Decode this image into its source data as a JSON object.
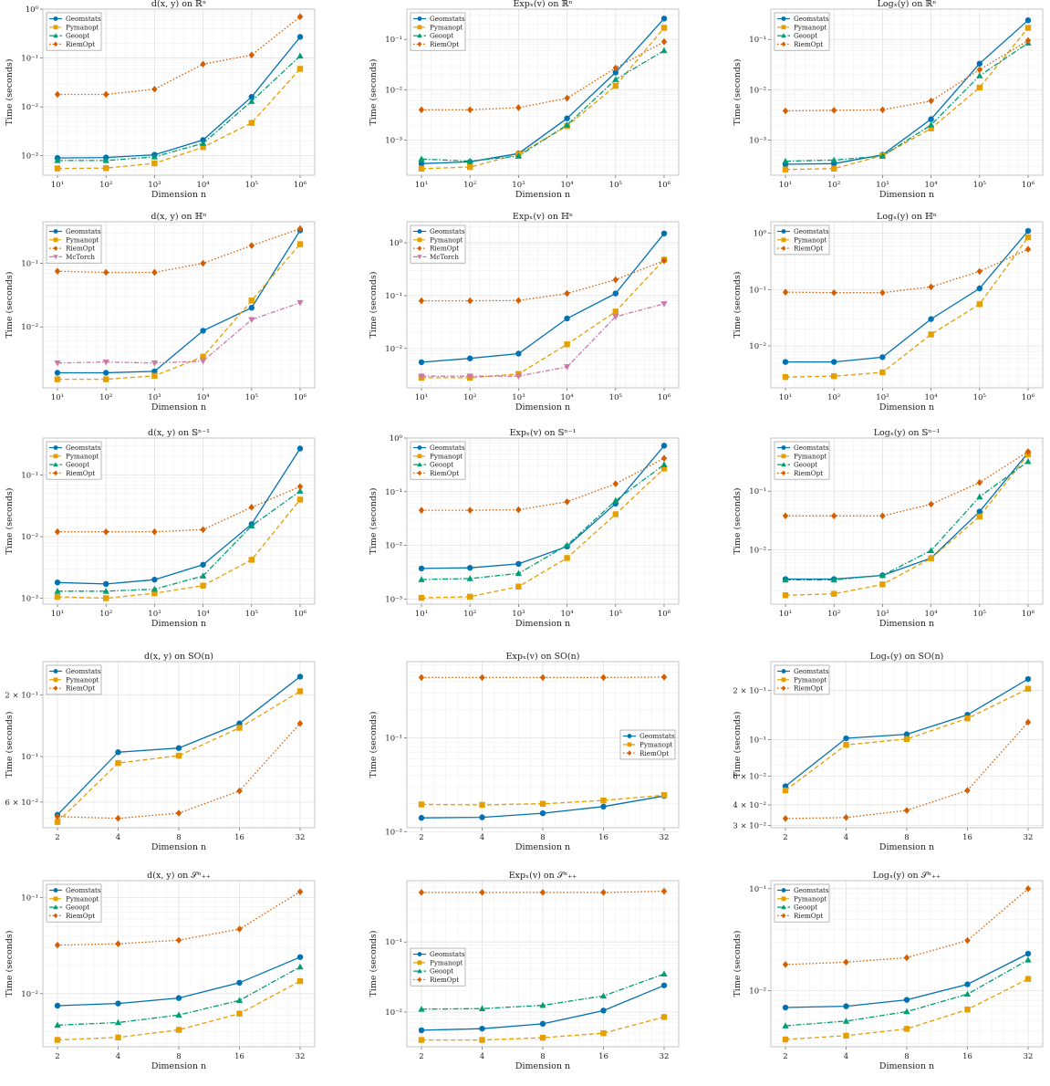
{
  "colors": {
    "Geomstats": "#0072b2",
    "Pymanopt": "#e69f00",
    "Geoopt": "#009e73",
    "RiemOpt": "#d55e00",
    "McTorch": "#cc79a7"
  },
  "chart_data": [
    {
      "type": "line",
      "title": "d(x, y) on ℝⁿ",
      "xlabel": "Dimension n",
      "ylabel": "Time (seconds)",
      "yscale": "log",
      "ylim": [
        0.0004,
        1
      ],
      "xcats": [
        "10¹",
        "10²",
        "10³",
        "10⁴",
        "10⁵",
        "10⁶"
      ],
      "yticks": [
        {
          "v": 1,
          "label": "10⁰"
        },
        {
          "v": 0.1,
          "label": "10⁻¹"
        },
        {
          "v": 0.01,
          "label": "10⁻²"
        },
        {
          "v": 0.001,
          "label": "10⁻³"
        }
      ],
      "legend": "top-left",
      "series": [
        {
          "name": "Geomstats",
          "values": [
            0.0009,
            0.00092,
            0.00105,
            0.0021,
            0.016,
            0.27
          ]
        },
        {
          "name": "Pymanopt",
          "values": [
            0.00055,
            0.00056,
            0.0007,
            0.0015,
            0.0047,
            0.06
          ]
        },
        {
          "name": "Geoopt",
          "values": [
            0.0008,
            0.0008,
            0.00095,
            0.0018,
            0.013,
            0.11
          ]
        },
        {
          "name": "RiemOpt",
          "values": [
            0.018,
            0.018,
            0.023,
            0.075,
            0.115,
            0.7
          ]
        }
      ]
    },
    {
      "type": "line",
      "title": "Expₓ(v) on ℝⁿ",
      "xlabel": "Dimension n",
      "ylabel": "Time (seconds)",
      "yscale": "log",
      "ylim": [
        0.0002,
        0.4
      ],
      "xcats": [
        "10¹",
        "10²",
        "10³",
        "10⁴",
        "10⁵",
        "10⁶"
      ],
      "yticks": [
        {
          "v": 0.1,
          "label": "10⁻¹"
        },
        {
          "v": 0.01,
          "label": "10⁻²"
        },
        {
          "v": 0.001,
          "label": "10⁻³"
        }
      ],
      "legend": "top-left",
      "series": [
        {
          "name": "Geomstats",
          "values": [
            0.00034,
            0.00037,
            0.00054,
            0.0027,
            0.022,
            0.26
          ]
        },
        {
          "name": "Pymanopt",
          "values": [
            0.00027,
            0.00029,
            0.00052,
            0.0019,
            0.012,
            0.17
          ]
        },
        {
          "name": "Geoopt",
          "values": [
            0.00042,
            0.00038,
            0.00048,
            0.002,
            0.016,
            0.06
          ]
        },
        {
          "name": "RiemOpt",
          "values": [
            0.004,
            0.004,
            0.0044,
            0.0068,
            0.027,
            0.09
          ]
        }
      ]
    },
    {
      "type": "line",
      "title": "Logₓ(y) on ℝⁿ",
      "xlabel": "Dimension n",
      "ylabel": "Time (seconds)",
      "yscale": "log",
      "ylim": [
        0.0002,
        0.4
      ],
      "xcats": [
        "10¹",
        "10²",
        "10³",
        "10⁴",
        "10⁵",
        "10⁶"
      ],
      "yticks": [
        {
          "v": 0.1,
          "label": "10⁻¹"
        },
        {
          "v": 0.01,
          "label": "10⁻²"
        },
        {
          "v": 0.001,
          "label": "10⁻³"
        }
      ],
      "legend": "top-left",
      "series": [
        {
          "name": "Geomstats",
          "values": [
            0.00033,
            0.00034,
            0.00051,
            0.0026,
            0.033,
            0.24
          ]
        },
        {
          "name": "Pymanopt",
          "values": [
            0.00026,
            0.00027,
            0.00049,
            0.0017,
            0.011,
            0.17
          ]
        },
        {
          "name": "Geoopt",
          "values": [
            0.00038,
            0.0004,
            0.00048,
            0.002,
            0.019,
            0.085
          ]
        },
        {
          "name": "RiemOpt",
          "values": [
            0.0038,
            0.0039,
            0.004,
            0.006,
            0.025,
            0.095
          ]
        }
      ]
    },
    {
      "type": "line",
      "title": "d(x, y) on ℍⁿ",
      "xlabel": "Dimension n",
      "ylabel": "Time (seconds)",
      "yscale": "log",
      "ylim": [
        0.0011,
        0.45
      ],
      "xcats": [
        "10¹",
        "10²",
        "10³",
        "10⁴",
        "10⁵",
        "10⁶"
      ],
      "yticks": [
        {
          "v": 0.1,
          "label": "10⁻¹"
        },
        {
          "v": 0.01,
          "label": "10⁻²"
        }
      ],
      "legend": "top-left",
      "series": [
        {
          "name": "Geomstats",
          "values": [
            0.0019,
            0.0019,
            0.002,
            0.0087,
            0.02,
            0.33
          ]
        },
        {
          "name": "Pymanopt",
          "values": [
            0.0015,
            0.0015,
            0.0017,
            0.0034,
            0.026,
            0.2
          ]
        },
        {
          "name": "RiemOpt",
          "values": [
            0.075,
            0.072,
            0.072,
            0.1,
            0.19,
            0.35
          ]
        },
        {
          "name": "McTorch",
          "values": [
            0.0027,
            0.0028,
            0.0027,
            0.0029,
            0.013,
            0.024
          ]
        }
      ]
    },
    {
      "type": "line",
      "title": "Expₓ(v) on ℍⁿ",
      "xlabel": "Dimension n",
      "ylabel": "Time (seconds)",
      "yscale": "log",
      "ylim": [
        0.0018,
        2.5
      ],
      "xcats": [
        "10¹",
        "10²",
        "10³",
        "10⁴",
        "10⁵",
        "10⁶"
      ],
      "yticks": [
        {
          "v": 1,
          "label": "10⁰"
        },
        {
          "v": 0.1,
          "label": "10⁻¹"
        },
        {
          "v": 0.01,
          "label": "10⁻²"
        }
      ],
      "legend": "top-left",
      "series": [
        {
          "name": "Geomstats",
          "values": [
            0.0055,
            0.0065,
            0.008,
            0.037,
            0.11,
            1.5
          ]
        },
        {
          "name": "Pymanopt",
          "values": [
            0.0028,
            0.0028,
            0.0033,
            0.012,
            0.05,
            0.48
          ]
        },
        {
          "name": "RiemOpt",
          "values": [
            0.08,
            0.08,
            0.081,
            0.11,
            0.2,
            0.46
          ]
        },
        {
          "name": "McTorch",
          "values": [
            0.003,
            0.003,
            0.003,
            0.0045,
            0.04,
            0.07
          ]
        }
      ]
    },
    {
      "type": "line",
      "title": "Logₓ(y) on ℍⁿ",
      "xlabel": "Dimension n",
      "ylabel": "Time (seconds)",
      "yscale": "log",
      "ylim": [
        0.0018,
        1.6
      ],
      "xcats": [
        "10¹",
        "10²",
        "10³",
        "10⁴",
        "10⁵",
        "10⁶"
      ],
      "yticks": [
        {
          "v": 1,
          "label": "10⁰"
        },
        {
          "v": 0.1,
          "label": "10⁻¹"
        },
        {
          "v": 0.01,
          "label": "10⁻²"
        }
      ],
      "legend": "top-left",
      "series": [
        {
          "name": "Geomstats",
          "values": [
            0.0052,
            0.0052,
            0.0063,
            0.03,
            0.105,
            1.1
          ]
        },
        {
          "name": "Pymanopt",
          "values": [
            0.0028,
            0.0029,
            0.0034,
            0.016,
            0.055,
            0.85
          ]
        },
        {
          "name": "RiemOpt",
          "values": [
            0.09,
            0.088,
            0.088,
            0.112,
            0.21,
            0.52
          ]
        }
      ]
    },
    {
      "type": "line",
      "title": "d(x, y) on 𝕊ⁿ⁻¹",
      "xlabel": "Dimension n",
      "ylabel": "Time (seconds)",
      "yscale": "log",
      "ylim": [
        0.0008,
        0.4
      ],
      "xcats": [
        "10¹",
        "10²",
        "10³",
        "10⁴",
        "10⁵",
        "10⁶"
      ],
      "yticks": [
        {
          "v": 0.1,
          "label": "10⁻¹"
        },
        {
          "v": 0.01,
          "label": "10⁻²"
        },
        {
          "v": 0.001,
          "label": "10⁻³"
        }
      ],
      "legend": "top-left",
      "series": [
        {
          "name": "Geomstats",
          "values": [
            0.0018,
            0.0017,
            0.002,
            0.0035,
            0.016,
            0.27
          ]
        },
        {
          "name": "Pymanopt",
          "values": [
            0.00105,
            0.001,
            0.0012,
            0.0016,
            0.0042,
            0.04
          ]
        },
        {
          "name": "Geoopt",
          "values": [
            0.0013,
            0.0013,
            0.0014,
            0.0023,
            0.015,
            0.055
          ]
        },
        {
          "name": "RiemOpt",
          "values": [
            0.012,
            0.012,
            0.012,
            0.013,
            0.03,
            0.065
          ]
        }
      ]
    },
    {
      "type": "line",
      "title": "Expₓ(v) on 𝕊ⁿ⁻¹",
      "xlabel": "Dimension n",
      "ylabel": "Time (seconds)",
      "yscale": "log",
      "ylim": [
        0.0008,
        1
      ],
      "xcats": [
        "10¹",
        "10²",
        "10³",
        "10⁴",
        "10⁵",
        "10⁶"
      ],
      "yticks": [
        {
          "v": 1,
          "label": "10⁰"
        },
        {
          "v": 0.1,
          "label": "10⁻¹"
        },
        {
          "v": 0.01,
          "label": "10⁻²"
        },
        {
          "v": 0.001,
          "label": "10⁻³"
        }
      ],
      "legend": "top-left",
      "series": [
        {
          "name": "Geomstats",
          "values": [
            0.0037,
            0.0038,
            0.0045,
            0.0095,
            0.06,
            0.72
          ]
        },
        {
          "name": "Pymanopt",
          "values": [
            0.00105,
            0.0011,
            0.0017,
            0.0058,
            0.038,
            0.27
          ]
        },
        {
          "name": "Geoopt",
          "values": [
            0.0023,
            0.0024,
            0.003,
            0.01,
            0.068,
            0.32
          ]
        },
        {
          "name": "RiemOpt",
          "values": [
            0.045,
            0.045,
            0.046,
            0.065,
            0.14,
            0.42
          ]
        }
      ]
    },
    {
      "type": "line",
      "title": "Logₓ(y) on 𝕊ⁿ⁻¹",
      "xlabel": "Dimension n",
      "ylabel": "Time (seconds)",
      "yscale": "log",
      "ylim": [
        0.0012,
        0.8
      ],
      "xcats": [
        "10¹",
        "10²",
        "10³",
        "10⁴",
        "10⁵",
        "10⁶"
      ],
      "yticks": [
        {
          "v": 0.1,
          "label": "10⁻¹"
        },
        {
          "v": 0.01,
          "label": "10⁻²"
        }
      ],
      "legend": "top-left",
      "series": [
        {
          "name": "Geomstats",
          "values": [
            0.0032,
            0.0032,
            0.0037,
            0.0073,
            0.045,
            0.45
          ]
        },
        {
          "name": "Pymanopt",
          "values": [
            0.0017,
            0.0018,
            0.0026,
            0.0072,
            0.037,
            0.42
          ]
        },
        {
          "name": "Geoopt",
          "values": [
            0.0031,
            0.0031,
            0.0037,
            0.0098,
            0.08,
            0.32
          ]
        },
        {
          "name": "RiemOpt",
          "values": [
            0.038,
            0.038,
            0.038,
            0.06,
            0.14,
            0.47
          ]
        }
      ]
    },
    {
      "type": "line",
      "title": "d(x, y) on SO(n)",
      "xlabel": "Dimension n",
      "ylabel": "Time (seconds)",
      "yscale": "log",
      "ylim": [
        0.045,
        0.29
      ],
      "xcats": [
        "2",
        "4",
        "8",
        "16",
        "32"
      ],
      "yticks": [
        {
          "v": 0.2,
          "label": "2 × 10⁻¹"
        },
        {
          "v": 0.1,
          "label": "10⁻¹"
        },
        {
          "v": 0.06,
          "label": "6 × 10⁻²"
        }
      ],
      "legend": "top-left",
      "series": [
        {
          "name": "Geomstats",
          "values": [
            0.052,
            0.105,
            0.11,
            0.145,
            0.245
          ]
        },
        {
          "name": "Pymanopt",
          "values": [
            0.048,
            0.093,
            0.101,
            0.138,
            0.208
          ]
        },
        {
          "name": "RiemOpt",
          "values": [
            0.051,
            0.05,
            0.053,
            0.068,
            0.145
          ]
        }
      ]
    },
    {
      "type": "line",
      "title": "Expₓ(v) on SO(n)",
      "xlabel": "Dimension n",
      "ylabel": "Time (seconds)",
      "yscale": "log",
      "ylim": [
        0.011,
        0.65
      ],
      "xcats": [
        "2",
        "4",
        "8",
        "16",
        "32"
      ],
      "yticks": [
        {
          "v": 0.1,
          "label": "10⁻¹"
        },
        {
          "v": 0.01,
          "label": "10⁻²"
        }
      ],
      "legend": "right",
      "series": [
        {
          "name": "Geomstats",
          "values": [
            0.014,
            0.0142,
            0.0157,
            0.0185,
            0.024
          ]
        },
        {
          "name": "Pymanopt",
          "values": [
            0.0195,
            0.0193,
            0.0198,
            0.0215,
            0.0245
          ]
        },
        {
          "name": "RiemOpt",
          "values": [
            0.44,
            0.44,
            0.44,
            0.44,
            0.445
          ]
        }
      ]
    },
    {
      "type": "line",
      "title": "Logₓ(y) on SO(n)",
      "xlabel": "Dimension n",
      "ylabel": "Time (seconds)",
      "yscale": "log",
      "ylim": [
        0.029,
        0.3
      ],
      "xcats": [
        "2",
        "4",
        "8",
        "16",
        "32"
      ],
      "yticks": [
        {
          "v": 0.2,
          "label": "2 × 10⁻¹"
        },
        {
          "v": 0.1,
          "label": "10⁻¹"
        },
        {
          "v": 0.06,
          "label": "6 × 10⁻²"
        },
        {
          "v": 0.04,
          "label": "4 × 10⁻²"
        },
        {
          "v": 0.03,
          "label": "3 × 10⁻²"
        }
      ],
      "legend": "top-left",
      "series": [
        {
          "name": "Geomstats",
          "values": [
            0.052,
            0.102,
            0.108,
            0.142,
            0.235
          ]
        },
        {
          "name": "Pymanopt",
          "values": [
            0.049,
            0.093,
            0.101,
            0.135,
            0.205
          ]
        },
        {
          "name": "RiemOpt",
          "values": [
            0.033,
            0.0335,
            0.037,
            0.049,
            0.128
          ]
        }
      ]
    },
    {
      "type": "line",
      "title": "d(x, y) on 𝒮ⁿ₊₊",
      "xlabel": "Dimension n",
      "ylabel": "Time (seconds)",
      "yscale": "log",
      "ylim": [
        0.0028,
        0.15
      ],
      "xcats": [
        "2",
        "4",
        "8",
        "16",
        "32"
      ],
      "yticks": [
        {
          "v": 0.1,
          "label": "10⁻¹"
        },
        {
          "v": 0.01,
          "label": "10⁻²"
        }
      ],
      "legend": "top-left",
      "series": [
        {
          "name": "Geomstats",
          "values": [
            0.0075,
            0.0079,
            0.009,
            0.013,
            0.024
          ]
        },
        {
          "name": "Pymanopt",
          "values": [
            0.0033,
            0.0035,
            0.0042,
            0.0062,
            0.0135
          ]
        },
        {
          "name": "Geoopt",
          "values": [
            0.0047,
            0.005,
            0.006,
            0.0085,
            0.019
          ]
        },
        {
          "name": "RiemOpt",
          "values": [
            0.032,
            0.033,
            0.036,
            0.047,
            0.115
          ]
        }
      ]
    },
    {
      "type": "line",
      "title": "Expₓ(v) on 𝒮ⁿ₊₊",
      "xlabel": "Dimension n",
      "ylabel": "Time (seconds)",
      "yscale": "log",
      "ylim": [
        0.0032,
        0.75
      ],
      "xcats": [
        "2",
        "4",
        "8",
        "16",
        "32"
      ],
      "yticks": [
        {
          "v": 0.1,
          "label": "10⁻¹"
        },
        {
          "v": 0.01,
          "label": "10⁻²"
        }
      ],
      "legend": "left",
      "series": [
        {
          "name": "Geomstats",
          "values": [
            0.0055,
            0.0058,
            0.0068,
            0.0105,
            0.024
          ]
        },
        {
          "name": "Pymanopt",
          "values": [
            0.004,
            0.004,
            0.0043,
            0.005,
            0.0085
          ]
        },
        {
          "name": "Geoopt",
          "values": [
            0.011,
            0.0112,
            0.0125,
            0.017,
            0.035
          ]
        },
        {
          "name": "RiemOpt",
          "values": [
            0.51,
            0.51,
            0.51,
            0.51,
            0.53
          ]
        }
      ]
    },
    {
      "type": "line",
      "title": "Logₓ(y) on 𝒮ⁿ₊₊",
      "xlabel": "Dimension n",
      "ylabel": "Time (seconds)",
      "yscale": "log",
      "ylim": [
        0.0028,
        0.12
      ],
      "xcats": [
        "2",
        "4",
        "8",
        "16",
        "32"
      ],
      "yticks": [
        {
          "v": 0.1,
          "label": "10⁻¹"
        },
        {
          "v": 0.01,
          "label": "10⁻²"
        }
      ],
      "legend": "top-left",
      "series": [
        {
          "name": "Geomstats",
          "values": [
            0.0068,
            0.007,
            0.0081,
            0.0115,
            0.023
          ]
        },
        {
          "name": "Pymanopt",
          "values": [
            0.0033,
            0.0036,
            0.0042,
            0.0065,
            0.013
          ]
        },
        {
          "name": "Geoopt",
          "values": [
            0.0045,
            0.005,
            0.0062,
            0.0092,
            0.02
          ]
        },
        {
          "name": "RiemOpt",
          "values": [
            0.018,
            0.019,
            0.021,
            0.031,
            0.1
          ]
        }
      ]
    }
  ]
}
